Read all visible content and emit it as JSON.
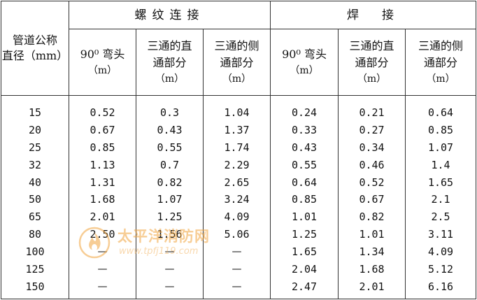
{
  "header": {
    "row_label": "管道公称直径（mm）",
    "row_label_line1": "管道公称",
    "row_label_line2": "直径（mm）",
    "groups": [
      {
        "title": "螺纹连接"
      },
      {
        "title": "焊　接"
      }
    ],
    "columns": [
      {
        "line1": "90⁰ 弯头",
        "line2": "",
        "unit": "（m）"
      },
      {
        "line1": "三通的直",
        "line2": "通部分",
        "unit": "（m）"
      },
      {
        "line1": "三通的侧",
        "line2": "通部分",
        "unit": "（m）"
      },
      {
        "line1": "90⁰ 弯头",
        "line2": "",
        "unit": "（m）"
      },
      {
        "line1": "三通的直",
        "line2": "通部分",
        "unit": "（m）"
      },
      {
        "line1": "三通的侧",
        "line2": "通部分",
        "unit": "（m）"
      }
    ]
  },
  "rows": [
    {
      "dn": "15",
      "values": [
        "0.52",
        "0.3",
        "1.04",
        "0.24",
        "0.21",
        "0.64"
      ]
    },
    {
      "dn": "20",
      "values": [
        "0.67",
        "0.43",
        "1.37",
        "0.33",
        "0.27",
        "0.85"
      ]
    },
    {
      "dn": "25",
      "values": [
        "0.85",
        "0.55",
        "1.74",
        "0.43",
        "0.34",
        "1.07"
      ]
    },
    {
      "dn": "32",
      "values": [
        "1.13",
        "0.7",
        "2.29",
        "0.55",
        "0.46",
        "1.4"
      ]
    },
    {
      "dn": "40",
      "values": [
        "1.31",
        "0.82",
        "2.65",
        "0.64",
        "0.52",
        "1.65"
      ]
    },
    {
      "dn": "50",
      "values": [
        "1.68",
        "1.07",
        "3.24",
        "0.85",
        "0.67",
        "2.1"
      ]
    },
    {
      "dn": "65",
      "values": [
        "2.01",
        "1.25",
        "4.09",
        "1.01",
        "0.82",
        "2.5"
      ]
    },
    {
      "dn": "80",
      "values": [
        "2.50",
        "1.56",
        "5.06",
        "1.25",
        "1.01",
        "3.11"
      ]
    },
    {
      "dn": "100",
      "values": [
        "—",
        "—",
        "—",
        "1.65",
        "1.34",
        "4.09"
      ]
    },
    {
      "dn": "125",
      "values": [
        "—",
        "—",
        "—",
        "2.04",
        "1.68",
        "5.12"
      ]
    },
    {
      "dn": "150",
      "values": [
        "—",
        "—",
        "—",
        "2.47",
        "2.01",
        "6.16"
      ]
    }
  ],
  "watermark": {
    "title": "太平洋消防网",
    "url": "www.tpfj119.com",
    "color": "#f2a640"
  }
}
